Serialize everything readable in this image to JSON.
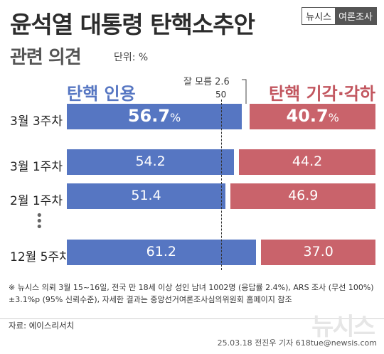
{
  "header": {
    "title": "윤석열 대통령 탄핵소추안",
    "subtitle": "관련 의견",
    "unit": "단위: %",
    "brand_left": "뉴시스",
    "brand_right": "여론조사"
  },
  "legend": {
    "support": "탄핵 인용",
    "oppose": "탄핵 기각·각하",
    "dont_know": "잘 모름 2.6",
    "midline": "50"
  },
  "colors": {
    "support": "#5676c2",
    "oppose": "#c9636b"
  },
  "chart_data": {
    "type": "bar",
    "stacked": true,
    "orientation": "horizontal",
    "unit": "%",
    "categories": [
      "3월 3주차",
      "3월 1주차",
      "2월 1주차",
      "12월 5주차"
    ],
    "series": [
      {
        "name": "탄핵 인용",
        "values": [
          56.7,
          54.2,
          51.4,
          61.2
        ]
      },
      {
        "name": "탄핵 기각·각하",
        "values": [
          40.7,
          44.2,
          46.9,
          37.0
        ]
      }
    ],
    "value_labels": {
      "support": [
        "56.7",
        "54.2",
        "51.4",
        "61.2"
      ],
      "oppose": [
        "40.7",
        "44.2",
        "46.9",
        "37.0"
      ]
    },
    "first_row_unit": "%",
    "reference_line": 50,
    "xlim": [
      0,
      100
    ]
  },
  "footnote": "※ 뉴시스 의뢰 3월 15~16일, 전국 만 18세 이상 성인 남녀 1002명 (응답률 2.4%), ARS 조사 (무선 100%) ±3.1%p (95% 신뢰수준), 자세한 결과는 중앙선거여론조사심의위원회 홈페이지 참조",
  "source": "자료: 에이스리서치",
  "credit": "25.03.18 전진우 기자 618tue@newsis.com",
  "watermark": "뉴시스"
}
